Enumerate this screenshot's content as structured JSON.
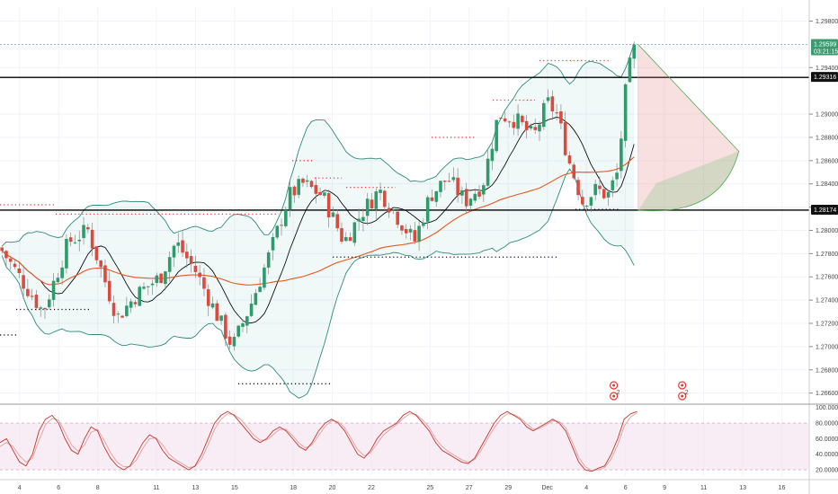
{
  "chart_data": {
    "type": "candlestick",
    "title": "",
    "price_axis_ticks": [
      "1.29800",
      "1.29400",
      "1.29000",
      "1.28800",
      "1.28600",
      "1.28400",
      "1.28200",
      "1.28000",
      "1.27800",
      "1.27600",
      "1.27400",
      "1.27200",
      "1.27000",
      "1.26800",
      "1.26600"
    ],
    "price_axis_values": [
      1.298,
      1.294,
      1.29,
      1.288,
      1.286,
      1.284,
      1.282,
      1.28,
      1.278,
      1.276,
      1.274,
      1.272,
      1.27,
      1.268,
      1.266
    ],
    "price_labels": {
      "current_price": "1.29599",
      "countdown": "03:21:15",
      "upper_level": "1.29316",
      "lower_level": "1.28174"
    },
    "current_price_value": 1.29599,
    "upper_level_value": 1.29316,
    "lower_level_value": 1.28174,
    "date_ticks": [
      {
        "label": "4",
        "t": 4
      },
      {
        "label": "6",
        "t": 6
      },
      {
        "label": "8",
        "t": 8
      },
      {
        "label": "11",
        "t": 11
      },
      {
        "label": "13",
        "t": 13
      },
      {
        "label": "15",
        "t": 15
      },
      {
        "label": "18",
        "t": 18
      },
      {
        "label": "20",
        "t": 20
      },
      {
        "label": "22",
        "t": 22
      },
      {
        "label": "25",
        "t": 25
      },
      {
        "label": "27",
        "t": 27
      },
      {
        "label": "29",
        "t": 29
      },
      {
        "label": "Dec",
        "t": 31
      },
      {
        "label": "4",
        "t": 33
      },
      {
        "label": "6",
        "t": 35
      },
      {
        "label": "9",
        "t": 37
      },
      {
        "label": "11",
        "t": 39
      },
      {
        "label": "13",
        "t": 41
      },
      {
        "label": "16",
        "t": 43
      }
    ],
    "oscillator": {
      "ticks": [
        "100.00000",
        "80.00000",
        "60.00000",
        "40.00000",
        "20.00000"
      ],
      "tick_values": [
        100,
        80,
        60,
        40,
        20
      ],
      "band": [
        20,
        80
      ],
      "k": [
        55,
        60,
        45,
        30,
        25,
        40,
        70,
        85,
        90,
        80,
        60,
        45,
        40,
        60,
        75,
        70,
        50,
        35,
        25,
        20,
        25,
        40,
        55,
        65,
        60,
        45,
        35,
        30,
        25,
        20,
        25,
        40,
        60,
        80,
        90,
        95,
        90,
        80,
        70,
        60,
        55,
        60,
        70,
        75,
        70,
        60,
        50,
        45,
        55,
        70,
        80,
        85,
        80,
        70,
        55,
        40,
        35,
        45,
        60,
        70,
        75,
        80,
        90,
        95,
        90,
        80,
        70,
        55,
        45,
        40,
        35,
        30,
        28,
        35,
        50,
        65,
        80,
        90,
        95,
        90,
        85,
        75,
        70,
        75,
        80,
        85,
        80,
        70,
        50,
        30,
        20,
        18,
        22,
        25,
        40,
        60,
        85,
        92,
        95
      ],
      "d": [
        50,
        55,
        50,
        38,
        30,
        35,
        58,
        78,
        86,
        84,
        68,
        52,
        44,
        52,
        68,
        72,
        58,
        42,
        30,
        24,
        24,
        33,
        48,
        60,
        61,
        52,
        40,
        33,
        28,
        23,
        24,
        34,
        52,
        72,
        85,
        92,
        91,
        85,
        75,
        65,
        58,
        58,
        65,
        72,
        72,
        64,
        54,
        48,
        52,
        64,
        76,
        83,
        82,
        74,
        60,
        46,
        38,
        42,
        54,
        65,
        72,
        78,
        86,
        92,
        91,
        84,
        74,
        60,
        50,
        43,
        38,
        33,
        30,
        33,
        45,
        60,
        74,
        85,
        92,
        91,
        87,
        79,
        72,
        73,
        78,
        83,
        82,
        74,
        56,
        36,
        24,
        19,
        20,
        23,
        34,
        52,
        76,
        88,
        93
      ]
    },
    "event_icons": [
      {
        "t": 34.4,
        "count": "2"
      },
      {
        "t": 37.9,
        "count": "2"
      }
    ]
  }
}
